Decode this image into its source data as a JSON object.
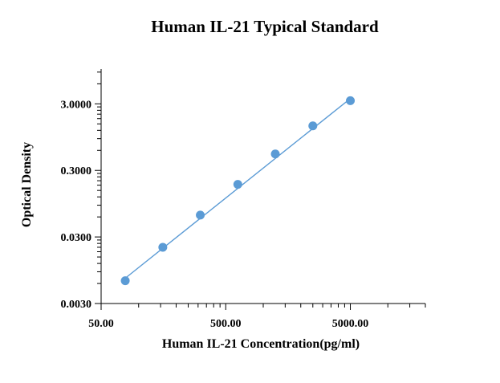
{
  "chart_data": {
    "type": "scatter",
    "title": "Human IL-21 Typical Standard",
    "xlabel": "Human IL-21 Concentration(pg/ml)",
    "ylabel": "Optical Density",
    "x_scale": "log",
    "y_scale": "log",
    "xlim": [
      50,
      20000
    ],
    "ylim": [
      0.003,
      10
    ],
    "x_major_ticks": [
      50,
      500,
      5000
    ],
    "x_tick_labels": [
      "50.00",
      "500.00",
      "5000.00"
    ],
    "y_major_ticks": [
      0.003,
      0.03,
      0.3,
      3
    ],
    "y_tick_labels": [
      "0.0030",
      "0.0300",
      "0.3000",
      "3.0000"
    ],
    "grid": false,
    "legend": "none",
    "series": [
      {
        "x": [
          78.1,
          156.3,
          312.5,
          625,
          1250,
          2500,
          5000
        ],
        "y": [
          0.0066,
          0.021,
          0.064,
          0.185,
          0.53,
          1.4,
          3.35
        ],
        "marker_color": "#5b9bd5"
      }
    ],
    "fit_line": {
      "x": [
        78.1,
        5000
      ],
      "y": [
        0.0072,
        3.6
      ],
      "color": "#5b9bd5"
    }
  }
}
